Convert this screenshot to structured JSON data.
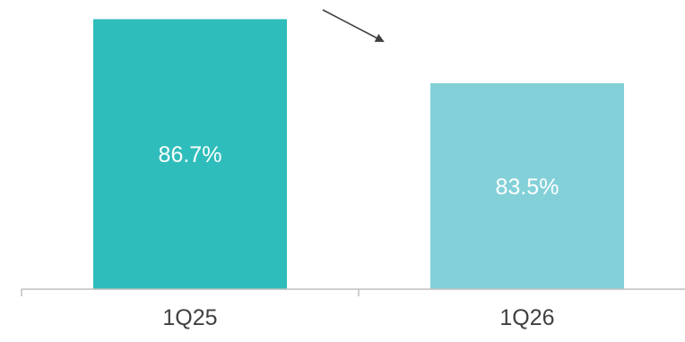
{
  "chart_data": {
    "type": "bar",
    "categories": [
      "1Q25",
      "1Q26"
    ],
    "values": [
      86.7,
      83.5
    ],
    "data_labels": [
      "86.7%",
      "83.5%"
    ],
    "bar_colors": [
      "#2fbdbb",
      "#83d0d9"
    ],
    "axis_color": "#bfbfbf",
    "arrow_color": "#404040",
    "label_color": "#ffffff",
    "tick_color": "#404040",
    "title": "",
    "xlabel": "",
    "ylabel": "",
    "ylim": [
      73.2,
      87.3
    ],
    "grid": false,
    "legend": "none",
    "annotation": "arrow-down-right"
  }
}
